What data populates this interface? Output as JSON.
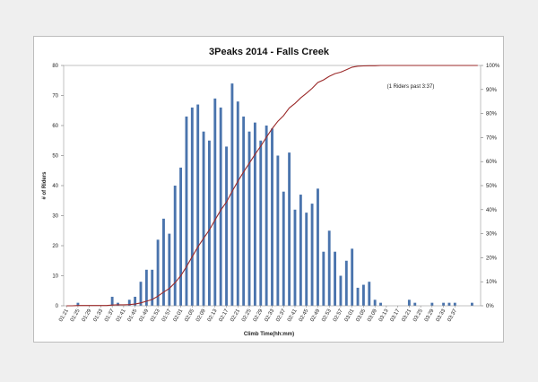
{
  "chart_data": {
    "type": "bar",
    "title": "3Peaks 2014 - Falls Creek",
    "xlabel": "Climb Time(hh:mm)",
    "ylabel": "# of Riders",
    "ylim": [
      0,
      80
    ],
    "y2lim": [
      0,
      100
    ],
    "y_ticks": [
      "0",
      "10",
      "20",
      "30",
      "40",
      "50",
      "60",
      "70",
      "80"
    ],
    "y2_ticks": [
      "0%",
      "10%",
      "20%",
      "30%",
      "40%",
      "50%",
      "60%",
      "70%",
      "80%",
      "90%",
      "100%"
    ],
    "annotation": "(1 Riders past 3:37)",
    "colors": {
      "bars": "#4a74ad",
      "cumulative": "#9b2a2a"
    },
    "x_tick_labels": [
      "01:21",
      "01:25",
      "01:29",
      "01:33",
      "01:37",
      "01:41",
      "01:45",
      "01:49",
      "01:53",
      "01:57",
      "02:01",
      "02:05",
      "02:09",
      "02:13",
      "02:17",
      "02:21",
      "02:25",
      "02:29",
      "02:33",
      "02:37",
      "02:41",
      "02:45",
      "02:49",
      "02:53",
      "02:57",
      "03:01",
      "03:05",
      "03:09",
      "03:13",
      "03:17",
      "03:21",
      "03:25",
      "03:29",
      "03:33",
      "03:37"
    ],
    "values": [
      0,
      0,
      1,
      0,
      0,
      0,
      0,
      0,
      3,
      1,
      0,
      2,
      3,
      8,
      12,
      12,
      22,
      29,
      24,
      40,
      46,
      63,
      66,
      67,
      58,
      55,
      69,
      66,
      53,
      74,
      68,
      63,
      58,
      61,
      55,
      60,
      59,
      50,
      38,
      51,
      32,
      37,
      31,
      34,
      39,
      18,
      25,
      18,
      10,
      15,
      19,
      6,
      7,
      8,
      2,
      1,
      0,
      0,
      0,
      0,
      2,
      1,
      0,
      0,
      1,
      0,
      1,
      1,
      1,
      0,
      0,
      1,
      0
    ],
    "cumulative_series": {
      "name": "",
      "values": [
        0,
        0,
        0.1,
        0.1,
        0.1,
        0.1,
        0.1,
        0.1,
        0.3,
        0.4,
        0.4,
        0.5,
        0.7,
        1.2,
        1.9,
        2.6,
        4.0,
        5.7,
        7.2,
        9.6,
        12.5,
        16.3,
        20.4,
        24.5,
        28.1,
        31.5,
        35.7,
        39.8,
        43.1,
        47.6,
        51.8,
        55.7,
        59.3,
        63.0,
        66.4,
        70.1,
        73.7,
        76.8,
        79.1,
        82.3,
        84.2,
        86.5,
        88.4,
        90.5,
        92.9,
        94.0,
        95.5,
        96.6,
        97.2,
        98.2,
        99.3,
        99.7,
        99.8,
        99.9,
        99.9,
        100,
        100,
        100,
        100,
        100,
        100,
        100,
        100,
        100,
        100,
        100,
        100,
        100,
        100,
        100,
        100,
        100,
        100
      ]
    }
  }
}
